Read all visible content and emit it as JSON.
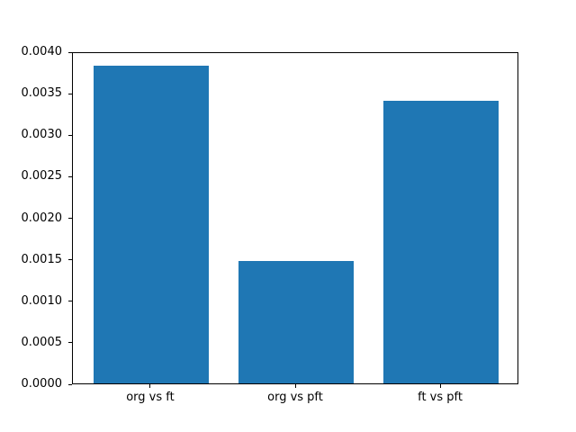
{
  "chart_data": {
    "type": "bar",
    "title": "",
    "xlabel": "",
    "ylabel": "",
    "categories": [
      "org vs ft",
      "org vs pft",
      "ft vs pft"
    ],
    "values": [
      0.00383,
      0.00147,
      0.0034
    ],
    "ylim": [
      0,
      0.004
    ],
    "yticks": [
      0.0,
      0.0005,
      0.001,
      0.0015,
      0.002,
      0.0025,
      0.003,
      0.0035,
      0.004
    ],
    "ytick_labels": [
      "0.0000",
      "0.0005",
      "0.0010",
      "0.0015",
      "0.0020",
      "0.0025",
      "0.0030",
      "0.0035",
      "0.0040"
    ],
    "bar_color": "#1f77b4",
    "spine_color": "#000000",
    "background_color": "#ffffff",
    "grid": false,
    "legend": null
  }
}
